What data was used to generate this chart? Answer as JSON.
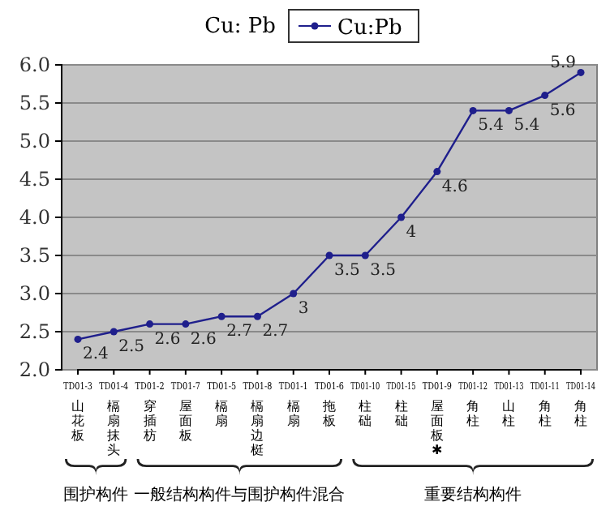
{
  "chart_data": {
    "type": "line",
    "title": "Cu: Pb",
    "categories": [
      "TD01-3 山花板",
      "TD01-4 槅扇抹头",
      "TD01-2 穿插枋",
      "TD01-7 屋面板",
      "TD01-5 槅扇",
      "TD01-8 槅扇边梃",
      "TD01-1 槅扇",
      "TD01-6 拖板",
      "TD01-10 柱础",
      "TD01-15 柱础",
      "TD01-9 屋面板✱",
      "TD01-12 角柱",
      "TD01-13 山柱",
      "TD01-11 角柱",
      "TD01-14 角柱"
    ],
    "series": [
      {
        "name": "Cu:Pb",
        "color": "#1f1f8c",
        "values": [
          2.4,
          2.5,
          2.6,
          2.6,
          2.7,
          2.7,
          3,
          3.5,
          3.5,
          4,
          4.6,
          5.4,
          5.4,
          5.6,
          5.9
        ]
      }
    ],
    "ylim": [
      2,
      6
    ],
    "yticks": [
      {
        "value": 2,
        "label": "2.0"
      },
      {
        "value": 2.5,
        "label": "2.5"
      },
      {
        "value": 3,
        "label": "3.0"
      },
      {
        "value": 3.5,
        "label": "3.5"
      },
      {
        "value": 4,
        "label": "4.0"
      },
      {
        "value": 4.5,
        "label": "4.5"
      },
      {
        "value": 5,
        "label": "5.0"
      },
      {
        "value": 5.5,
        "label": "5.5"
      },
      {
        "value": 6,
        "label": "6.0"
      }
    ],
    "grid": "y",
    "legend": "top right",
    "marker": "circle",
    "line_style": "solid",
    "data_labels": true,
    "annotations": [
      "围护构件",
      "一般结构构件与围护构件混合",
      "重要结构构件"
    ]
  }
}
